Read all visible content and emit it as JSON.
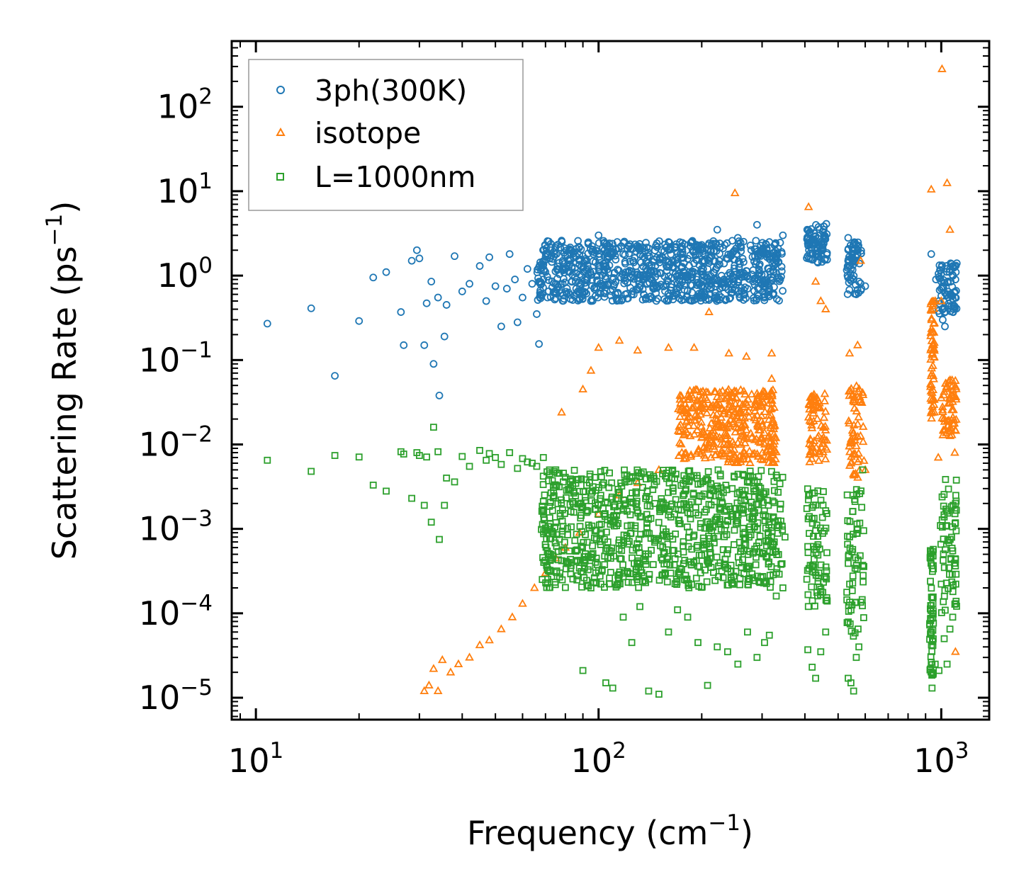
{
  "chart_data": {
    "type": "scatter",
    "xscale": "log",
    "yscale": "log",
    "xlabel": "Frequency (cm",
    "xlabel_sup": "−1",
    "xlabel_close": ")",
    "ylabel": "Scattering Rate (ps",
    "ylabel_sup": "−1",
    "ylabel_close": ")",
    "xlim": [
      8.5,
      1380
    ],
    "ylim": [
      5.5e-06,
      600
    ],
    "xticks": [
      {
        "base": "10",
        "exp": "1",
        "value": 10
      },
      {
        "base": "10",
        "exp": "2",
        "value": 100
      },
      {
        "base": "10",
        "exp": "3",
        "value": 1000
      }
    ],
    "yticks": [
      {
        "base": "10",
        "exp": "2",
        "value": 100
      },
      {
        "base": "10",
        "exp": "1",
        "value": 10
      },
      {
        "base": "10",
        "exp": "0",
        "value": 1
      },
      {
        "base": "10",
        "exp": "−1",
        "value": 0.1
      },
      {
        "base": "10",
        "exp": "−2",
        "value": 0.01
      },
      {
        "base": "10",
        "exp": "−3",
        "value": 0.001
      },
      {
        "base": "10",
        "exp": "−4",
        "value": 0.0001
      },
      {
        "base": "10",
        "exp": "−5",
        "value": 1e-05
      }
    ],
    "legend_location": "upper-left",
    "series": [
      {
        "name": "3ph(300K)",
        "marker": "circle",
        "color": "#1f77b4",
        "points": [
          [
            10.8,
            0.27
          ],
          [
            14.5,
            0.41
          ],
          [
            17,
            0.065
          ],
          [
            20,
            0.29
          ],
          [
            22,
            0.95
          ],
          [
            24,
            1.1
          ],
          [
            26.5,
            0.37
          ],
          [
            27,
            0.15
          ],
          [
            28.5,
            1.5
          ],
          [
            29.5,
            2.0
          ],
          [
            30,
            1.6
          ],
          [
            31,
            0.15
          ],
          [
            31.5,
            0.47
          ],
          [
            32.5,
            0.85
          ],
          [
            33,
            0.09
          ],
          [
            34,
            0.55
          ],
          [
            34.3,
            0.038
          ],
          [
            35.5,
            0.19
          ],
          [
            36,
            0.45
          ],
          [
            38,
            1.7
          ],
          [
            40,
            0.65
          ],
          [
            42,
            0.8
          ],
          [
            45,
            1.3
          ],
          [
            47,
            0.5
          ],
          [
            48,
            1.65
          ],
          [
            50,
            0.75
          ],
          [
            52,
            0.25
          ],
          [
            54,
            0.7
          ],
          [
            55,
            1.8
          ],
          [
            57,
            0.9
          ],
          [
            58,
            0.28
          ],
          [
            60,
            0.55
          ],
          [
            62,
            1.2
          ],
          [
            64,
            0.8
          ],
          [
            66,
            0.35
          ],
          [
            67,
            0.155
          ],
          [
            69,
            0.9
          ],
          [
            72,
            1.6
          ],
          [
            75,
            0.8
          ],
          [
            78,
            2.6
          ],
          [
            82,
            1.1
          ],
          [
            86,
            0.7
          ],
          [
            90,
            1.7
          ],
          [
            95,
            0.5
          ],
          [
            100,
            3.0
          ],
          [
            105,
            1.3
          ],
          [
            110,
            0.9
          ],
          [
            118,
            1.8
          ],
          [
            125,
            0.6
          ],
          [
            132,
            2.0
          ],
          [
            140,
            1.0
          ],
          [
            150,
            0.75
          ],
          [
            160,
            2.5
          ],
          [
            170,
            1.4
          ],
          [
            182,
            0.9
          ],
          [
            195,
            2.2
          ],
          [
            208,
            1.2
          ],
          [
            222,
            3.5
          ],
          [
            238,
            1.6
          ],
          [
            255,
            2.8
          ],
          [
            272,
            1.0
          ],
          [
            290,
            4.0
          ],
          [
            305,
            0.6
          ],
          [
            315,
            2.5
          ],
          [
            330,
            1.5
          ],
          [
            345,
            3.0
          ],
          [
            408,
            2.4
          ],
          [
            425,
            3.2
          ],
          [
            440,
            1.9
          ],
          [
            455,
            3.8
          ],
          [
            462,
            4.1
          ],
          [
            535,
            2.8
          ],
          [
            545,
            1.2
          ],
          [
            555,
            0.9
          ],
          [
            565,
            0.6
          ],
          [
            575,
            0.85
          ],
          [
            585,
            0.7
          ],
          [
            600,
            0.75
          ],
          [
            935,
            1.8
          ],
          [
            965,
            0.9
          ],
          [
            985,
            0.5
          ],
          [
            1000,
            0.7
          ],
          [
            1010,
            0.3
          ],
          [
            1025,
            0.25
          ],
          [
            1040,
            1.2
          ],
          [
            1060,
            0.6
          ],
          [
            1080,
            1.3
          ],
          [
            1100,
            0.9
          ],
          [
            1110,
            1.4
          ]
        ],
        "bands": [
          {
            "xmin": 66,
            "xmax": 345,
            "ymin": 0.5,
            "ymax": 2.6
          },
          {
            "xmin": 405,
            "xmax": 465,
            "ymin": 1.4,
            "ymax": 4.0
          },
          {
            "xmin": 530,
            "xmax": 585,
            "ymin": 0.6,
            "ymax": 2.5
          },
          {
            "xmin": 980,
            "xmax": 1110,
            "ymin": 0.35,
            "ymax": 1.4
          }
        ]
      },
      {
        "name": "isotope",
        "marker": "triangle",
        "color": "#ff7f0e",
        "points": [
          [
            31,
            1.2e-05
          ],
          [
            32,
            1.4e-05
          ],
          [
            33,
            2.2e-05
          ],
          [
            34,
            1.2e-05
          ],
          [
            35,
            2.8e-05
          ],
          [
            37,
            2e-05
          ],
          [
            39,
            2.5e-05
          ],
          [
            42,
            3e-05
          ],
          [
            45,
            4.2e-05
          ],
          [
            48,
            4.8e-05
          ],
          [
            52,
            6.5e-05
          ],
          [
            56,
            9e-05
          ],
          [
            60,
            0.00013
          ],
          [
            65,
            0.0002
          ],
          [
            70,
            0.0003
          ],
          [
            75,
            0.00045
          ],
          [
            80,
            0.0006
          ],
          [
            88,
            0.0009
          ],
          [
            100,
            0.0015
          ],
          [
            115,
            0.0025
          ],
          [
            130,
            0.0035
          ],
          [
            150,
            0.005
          ],
          [
            175,
            0.008
          ],
          [
            200,
            0.012
          ],
          [
            230,
            0.016
          ],
          [
            260,
            0.025
          ],
          [
            290,
            0.04
          ],
          [
            320,
            0.06
          ],
          [
            78,
            0.024
          ],
          [
            90,
            0.045
          ],
          [
            95,
            0.075
          ],
          [
            100,
            0.14
          ],
          [
            115,
            0.17
          ],
          [
            130,
            0.13
          ],
          [
            160,
            0.14
          ],
          [
            190,
            0.14
          ],
          [
            250,
            9.5
          ],
          [
            210,
            0.37
          ],
          [
            240,
            0.12
          ],
          [
            270,
            0.11
          ],
          [
            320,
            0.12
          ],
          [
            410,
            6.5
          ],
          [
            430,
            0.85
          ],
          [
            445,
            0.5
          ],
          [
            460,
            0.4
          ],
          [
            540,
            0.12
          ],
          [
            570,
            0.15
          ],
          [
            582,
            1.5
          ],
          [
            600,
            0.005
          ],
          [
            935,
            10.5
          ],
          [
            960,
            0.5
          ],
          [
            980,
            0.007
          ],
          [
            1000,
            0.5
          ],
          [
            1005,
            280
          ],
          [
            1020,
            0.02
          ],
          [
            1040,
            12.5
          ],
          [
            1060,
            3.5
          ],
          [
            1080,
            0.05
          ],
          [
            1100,
            3.5e-05
          ],
          [
            1095,
            0.008
          ]
        ],
        "bands": [
          {
            "xmin": 170,
            "xmax": 330,
            "ymin": 0.006,
            "ymax": 0.045
          },
          {
            "xmin": 410,
            "xmax": 465,
            "ymin": 0.006,
            "ymax": 0.04
          },
          {
            "xmin": 535,
            "xmax": 595,
            "ymin": 0.004,
            "ymax": 0.05
          },
          {
            "xmin": 1000,
            "xmax": 1110,
            "ymin": 0.012,
            "ymax": 0.06
          },
          {
            "xmin": 930,
            "xmax": 955,
            "ymin": 0.02,
            "ymax": 0.5
          }
        ]
      },
      {
        "name": "L=1000nm",
        "marker": "square",
        "color": "#2ca02c",
        "points": [
          [
            10.8,
            0.0065
          ],
          [
            14.5,
            0.0048
          ],
          [
            17,
            0.0074
          ],
          [
            20,
            0.0071
          ],
          [
            22,
            0.0033
          ],
          [
            24,
            0.0028
          ],
          [
            26.5,
            0.0082
          ],
          [
            27,
            0.0077
          ],
          [
            28.5,
            0.0023
          ],
          [
            29.5,
            0.008
          ],
          [
            30,
            0.0074
          ],
          [
            31,
            0.0019
          ],
          [
            31.5,
            0.0071
          ],
          [
            32.5,
            0.0012
          ],
          [
            33,
            0.016
          ],
          [
            34,
            0.0082
          ],
          [
            34.3,
            0.00075
          ],
          [
            35.5,
            0.0019
          ],
          [
            36,
            0.004
          ],
          [
            38,
            0.0036
          ],
          [
            40,
            0.0072
          ],
          [
            42,
            0.0055
          ],
          [
            45,
            0.0085
          ],
          [
            47,
            0.0065
          ],
          [
            48,
            0.0078
          ],
          [
            50,
            0.007
          ],
          [
            52,
            0.0058
          ],
          [
            55,
            0.008
          ],
          [
            58,
            0.0052
          ],
          [
            60,
            0.0068
          ],
          [
            62,
            0.0062
          ],
          [
            64,
            0.006
          ],
          [
            66,
            0.0055
          ],
          [
            69,
            0.007
          ],
          [
            72,
            0.0045
          ],
          [
            75,
            0.005
          ],
          [
            78,
            0.00042
          ],
          [
            82,
            0.0004
          ],
          [
            86,
            0.00056
          ],
          [
            90,
            2.1e-05
          ],
          [
            95,
            0.0002
          ],
          [
            100,
            0.00032
          ],
          [
            105,
            1.5e-05
          ],
          [
            110,
            1.3e-05
          ],
          [
            118,
            9e-05
          ],
          [
            125,
            4.5e-05
          ],
          [
            132,
            0.00012
          ],
          [
            140,
            1.2e-05
          ],
          [
            150,
            1.1e-05
          ],
          [
            160,
            6e-05
          ],
          [
            170,
            0.00011
          ],
          [
            182,
            9e-05
          ],
          [
            195,
            4.5e-05
          ],
          [
            208,
            1.4e-05
          ],
          [
            222,
            4e-05
          ],
          [
            238,
            3.5e-05
          ],
          [
            255,
            2.5e-05
          ],
          [
            272,
            6e-05
          ],
          [
            290,
            3e-05
          ],
          [
            305,
            4.5e-05
          ],
          [
            315,
            5.5e-05
          ],
          [
            330,
            0.00016
          ],
          [
            345,
            0.0002
          ],
          [
            350,
            0.0008
          ],
          [
            408,
            3.7e-05
          ],
          [
            420,
            2.3e-05
          ],
          [
            430,
            1.7e-05
          ],
          [
            445,
            3.5e-05
          ],
          [
            460,
            6e-05
          ],
          [
            535,
            1.7e-05
          ],
          [
            545,
            1.5e-05
          ],
          [
            555,
            1.2e-05
          ],
          [
            565,
            3e-05
          ],
          [
            575,
            4e-05
          ],
          [
            590,
            0.005
          ],
          [
            935,
            6e-05
          ],
          [
            940,
            1.3e-05
          ],
          [
            960,
            2.5e-05
          ],
          [
            985,
            2.1e-05
          ],
          [
            1020,
            5e-05
          ],
          [
            1040,
            2.5e-05
          ],
          [
            1060,
            6.5e-05
          ],
          [
            1080,
            9e-05
          ],
          [
            1100,
            0.00013
          ]
        ],
        "bands": [
          {
            "xmin": 68,
            "xmax": 345,
            "ymin": 0.0002,
            "ymax": 0.005
          },
          {
            "xmin": 405,
            "xmax": 465,
            "ymin": 0.00012,
            "ymax": 0.003
          },
          {
            "xmin": 530,
            "xmax": 595,
            "ymin": 5e-05,
            "ymax": 0.003
          },
          {
            "xmin": 925,
            "xmax": 950,
            "ymin": 1.5e-05,
            "ymax": 0.0006
          },
          {
            "xmin": 990,
            "xmax": 1110,
            "ymin": 0.0001,
            "ymax": 0.004
          }
        ]
      }
    ]
  }
}
